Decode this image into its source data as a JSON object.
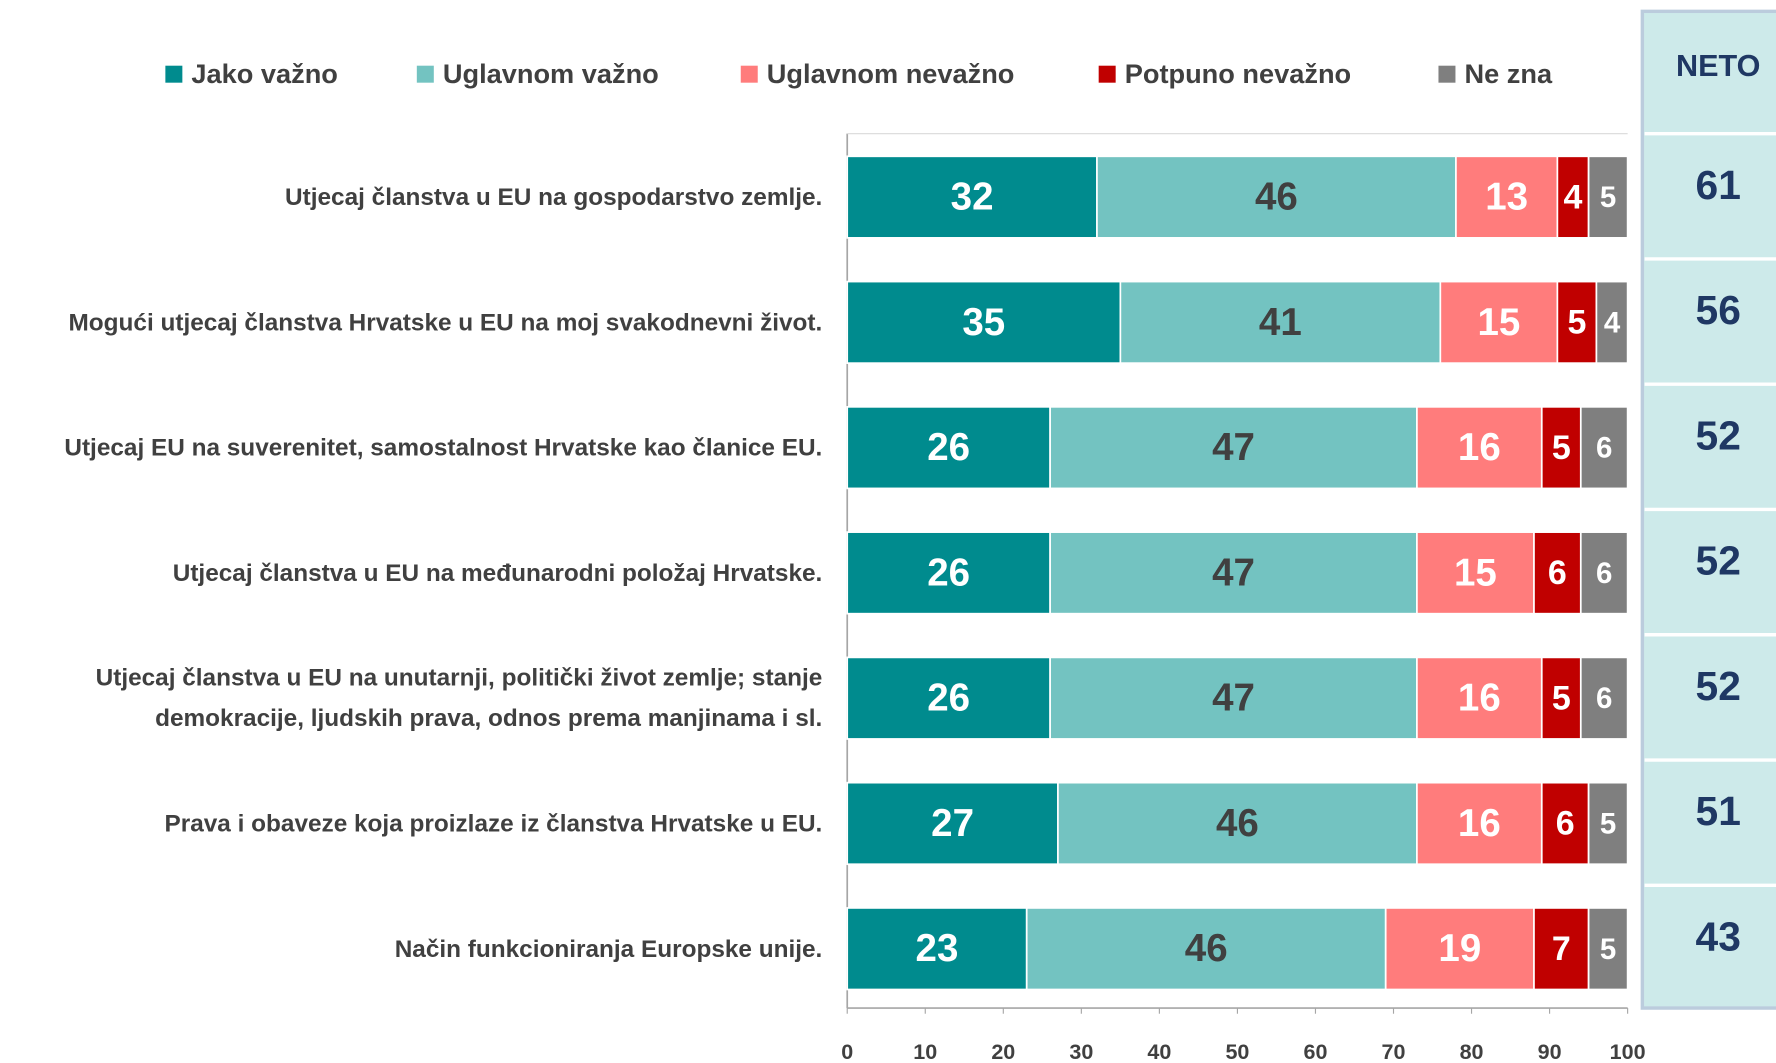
{
  "chart_data": {
    "type": "bar",
    "orientation": "horizontal",
    "stacked": true,
    "categories": [
      "Utjecaj članstva u EU na gospodarstvo zemlje.",
      "Mogući utjecaj članstva Hrvatske u EU na moj svakodnevni život.",
      "Utjecaj EU na suverenitet, samostalnost Hrvatske kao članice EU.",
      "Utjecaj članstva u EU na međunarodni položaj Hrvatske.",
      "Utjecaj članstva u EU na unutarnji, politički život zemlje; stanje demokracije, ljudskih prava, odnos prema manjinama i sl.",
      "Prava i obaveze koja proizlaze iz članstva Hrvatske u EU.",
      "Način funkcioniranja Europske unije."
    ],
    "series": [
      {
        "name": "Jako važno",
        "color": "#008b8e",
        "values": [
          32,
          35,
          26,
          26,
          26,
          27,
          23
        ]
      },
      {
        "name": "Uglavnom važno",
        "color": "#73c3c1",
        "values": [
          46,
          41,
          47,
          47,
          47,
          46,
          46
        ]
      },
      {
        "name": "Uglavnom nevažno",
        "color": "#ff7c7c",
        "values": [
          13,
          15,
          16,
          15,
          16,
          16,
          19
        ]
      },
      {
        "name": "Potpuno nevažno",
        "color": "#c00000",
        "values": [
          4,
          5,
          5,
          6,
          5,
          6,
          7
        ]
      },
      {
        "name": "Ne zna",
        "color": "#7f7f7f",
        "values": [
          5,
          4,
          6,
          6,
          6,
          5,
          5
        ]
      }
    ],
    "xlim": [
      0,
      100
    ],
    "xticks": [
      0,
      10,
      20,
      30,
      40,
      50,
      60,
      70,
      80,
      90,
      100
    ],
    "legend": "top",
    "net_title": "NETO",
    "net_values": [
      61,
      56,
      52,
      52,
      52,
      51,
      43
    ]
  }
}
